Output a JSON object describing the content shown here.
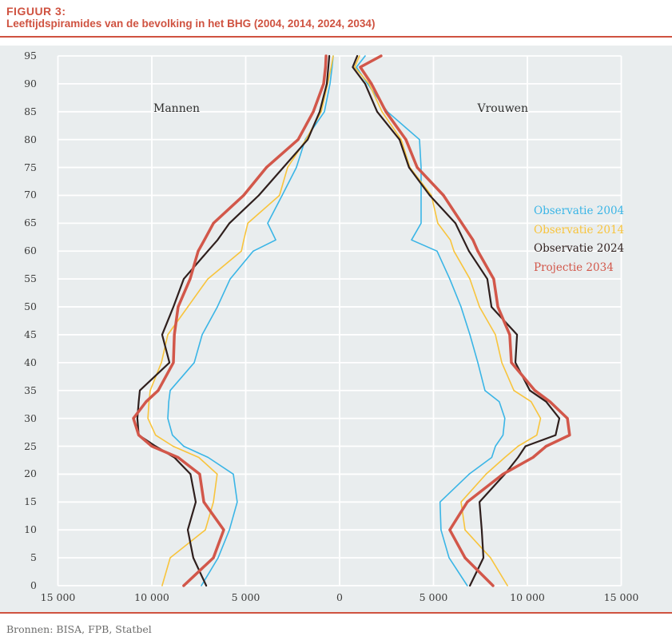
{
  "figure": {
    "label": "FIGUUR 3:",
    "title": "Leeftijdspiramides van de bevolking in het BHG (2004, 2014, 2024, 2034)",
    "source": "Bronnen: BISA, FPB, Statbel"
  },
  "colors": {
    "accent_red": "#cf5240",
    "panel_background": "#e9edee",
    "gridline": "#ffffff",
    "tick_text": "#3b3b3a",
    "source_text": "#6d6d6c"
  },
  "chart_data": {
    "type": "line",
    "variant": "population-pyramid",
    "title": "Leeftijdspiramides van de bevolking in het BHG (2004, 2014, 2024, 2034)",
    "left_label": "Mannen",
    "right_label": "Vrouwen",
    "grid": true,
    "legend_position": "right-inside",
    "x_axis": {
      "xlim": [
        -15000,
        15000
      ],
      "tick_values": [
        -15000,
        -10000,
        -5000,
        0,
        5000,
        10000,
        15000
      ],
      "tick_labels": [
        "15 000",
        "10 000",
        "5 000",
        "0",
        "5 000",
        "10 000",
        "15 000"
      ]
    },
    "y_axis": {
      "ylim": [
        0,
        95
      ],
      "tick_values": [
        0,
        5,
        10,
        15,
        20,
        25,
        30,
        35,
        40,
        45,
        50,
        55,
        60,
        65,
        70,
        75,
        80,
        85,
        90,
        95
      ],
      "unit": "leeftijd"
    },
    "ages": [
      0,
      5,
      10,
      15,
      20,
      23,
      25,
      27,
      30,
      33,
      35,
      40,
      45,
      50,
      55,
      60,
      62,
      65,
      70,
      75,
      80,
      85,
      90,
      93,
      95
    ],
    "series": [
      {
        "name": "Observatie 2004",
        "color": "#3ab5e6",
        "stroke_width": 1.6,
        "men": [
          7360,
          6470,
          5870,
          5450,
          5660,
          7000,
          8300,
          8900,
          9150,
          9100,
          9020,
          7740,
          7320,
          6510,
          5830,
          4600,
          3400,
          3830,
          3060,
          2300,
          1830,
          810,
          510,
          400,
          340
        ],
        "women": [
          6800,
          5830,
          5400,
          5350,
          6900,
          8100,
          8300,
          8700,
          8800,
          8500,
          7740,
          7360,
          6940,
          6470,
          5870,
          5190,
          3830,
          4340,
          4340,
          4340,
          4255,
          2550,
          1490,
          900,
          1360
        ]
      },
      {
        "name": "Observatie 2014",
        "color": "#f8c43c",
        "stroke_width": 1.6,
        "men": [
          9450,
          9020,
          7150,
          6720,
          6520,
          7500,
          8870,
          9800,
          10210,
          10150,
          10085,
          9490,
          9150,
          8085,
          7020,
          5230,
          5100,
          4890,
          3200,
          2770,
          1790,
          980,
          640,
          450,
          340
        ],
        "women": [
          8940,
          8040,
          6680,
          6470,
          7800,
          8800,
          9500,
          10500,
          10700,
          10200,
          9280,
          8640,
          8300,
          7450,
          6940,
          6090,
          5900,
          5230,
          4890,
          3745,
          3280,
          2260,
          1570,
          800,
          1060
        ]
      },
      {
        "name": "Observatie 2024",
        "color": "#2f1f1d",
        "stroke_width": 2.2,
        "men": [
          7100,
          7790,
          8085,
          7660,
          7940,
          8800,
          9800,
          10700,
          10770,
          10700,
          10640,
          9060,
          9450,
          8850,
          8300,
          7020,
          6500,
          5870,
          4300,
          3000,
          1700,
          1060,
          680,
          600,
          550
        ],
        "women": [
          6940,
          7660,
          7570,
          7450,
          8800,
          9500,
          9900,
          11500,
          11700,
          11000,
          10130,
          9360,
          9450,
          8090,
          7870,
          6890,
          6600,
          6170,
          4800,
          3700,
          3190,
          2000,
          1360,
          700,
          940
        ]
      },
      {
        "name": "Projectie 2034",
        "color": "#d2574a",
        "stroke_width": 3.5,
        "men": [
          8300,
          6720,
          6170,
          7230,
          7450,
          8600,
          10000,
          10700,
          10980,
          10300,
          9660,
          8850,
          8800,
          8600,
          7960,
          7530,
          7200,
          6720,
          5110,
          3900,
          2210,
          1400,
          850,
          750,
          720
        ],
        "women": [
          8170,
          6680,
          5870,
          6800,
          8700,
          10300,
          11000,
          12250,
          12130,
          11200,
          10400,
          9150,
          9060,
          8430,
          8210,
          7360,
          7100,
          6510,
          5530,
          4130,
          3530,
          2470,
          1700,
          1100,
          2210
        ]
      }
    ]
  }
}
